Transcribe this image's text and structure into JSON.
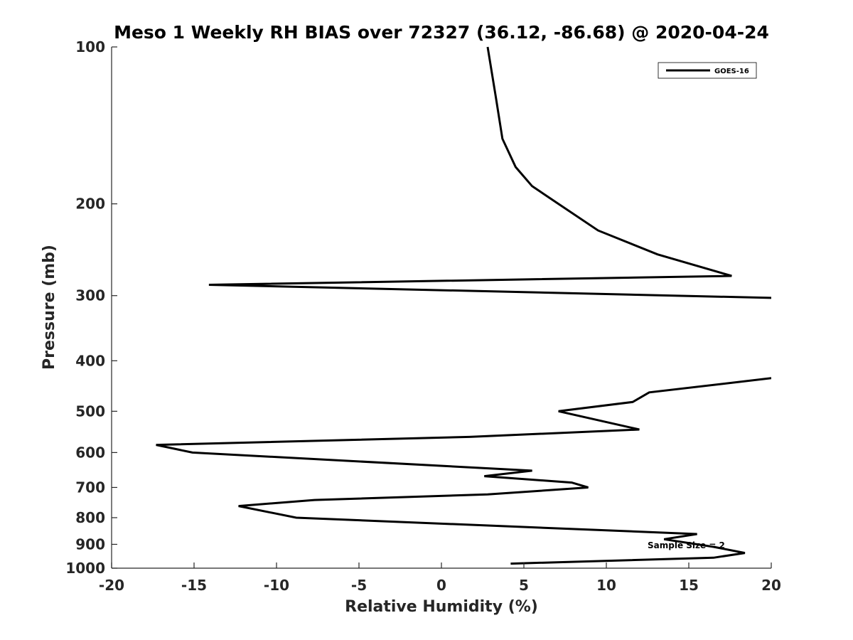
{
  "chart_data": {
    "type": "line",
    "title": "Meso 1 Weekly RH BIAS over 72327 (36.12, -86.68) @ 2020-04-24",
    "xlabel": "Relative Humidity (%)",
    "ylabel": "Pressure (mb)",
    "xlim": [
      -20,
      20
    ],
    "ylim": [
      100,
      1000
    ],
    "y_scale": "log",
    "y_reversed": true,
    "x_ticks": [
      -20,
      -15,
      -10,
      -5,
      0,
      5,
      10,
      15,
      20
    ],
    "x_tick_labels": [
      "-20",
      "-15",
      "-10",
      "-5",
      "0",
      "5",
      "10",
      "15",
      "20"
    ],
    "y_ticks": [
      100,
      200,
      300,
      400,
      500,
      600,
      700,
      800,
      900,
      1000
    ],
    "y_tick_labels": [
      "100",
      "200",
      "300",
      "400",
      "500",
      "600",
      "700",
      "800",
      "900",
      "1000"
    ],
    "grid": false,
    "legend_position": "top-right",
    "annotation": "Sample Size = 2",
    "line_color": "#000000",
    "series": [
      {
        "name": "GOES-16",
        "points": [
          {
            "x": 2.8,
            "p": 100
          },
          {
            "x": 3.3,
            "p": 125
          },
          {
            "x": 3.7,
            "p": 150
          },
          {
            "x": 4.5,
            "p": 170
          },
          {
            "x": 5.5,
            "p": 185
          },
          {
            "x": 7.1,
            "p": 200
          },
          {
            "x": 9.5,
            "p": 225
          },
          {
            "x": 13.1,
            "p": 250
          },
          {
            "x": 17.6,
            "p": 275
          },
          {
            "x": -14.1,
            "p": 286
          },
          {
            "x": 20.0,
            "p": 303
          },
          {
            "x": null,
            "p": 350
          },
          {
            "x": 20.0,
            "p": 432
          },
          {
            "x": 12.6,
            "p": 460
          },
          {
            "x": 11.6,
            "p": 480
          },
          {
            "x": 7.1,
            "p": 500
          },
          {
            "x": 12.0,
            "p": 542
          },
          {
            "x": 1.7,
            "p": 560
          },
          {
            "x": -17.3,
            "p": 580
          },
          {
            "x": -15.1,
            "p": 600
          },
          {
            "x": 5.5,
            "p": 650
          },
          {
            "x": 2.6,
            "p": 666
          },
          {
            "x": 7.9,
            "p": 685
          },
          {
            "x": 8.9,
            "p": 700
          },
          {
            "x": 2.8,
            "p": 722
          },
          {
            "x": -7.7,
            "p": 740
          },
          {
            "x": -12.3,
            "p": 760
          },
          {
            "x": -8.8,
            "p": 800
          },
          {
            "x": 15.5,
            "p": 860
          },
          {
            "x": 13.5,
            "p": 880
          },
          {
            "x": 16.5,
            "p": 910
          },
          {
            "x": 18.4,
            "p": 935
          },
          {
            "x": 16.5,
            "p": 955
          },
          {
            "x": 4.2,
            "p": 980
          }
        ]
      }
    ]
  }
}
